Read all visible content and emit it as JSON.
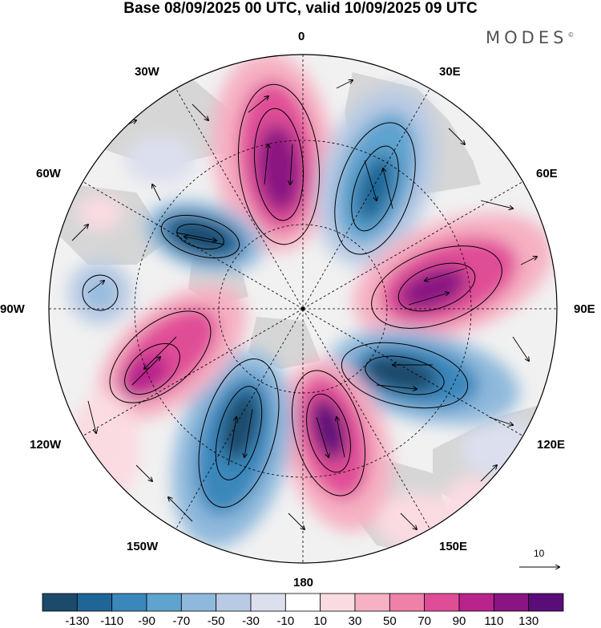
{
  "title": "Base 08/09/2025 00 UTC, valid 10/09/2025 09 UTC",
  "brand": "MODES",
  "brand_mark": "©",
  "longitude_labels": [
    "0",
    "30E",
    "60E",
    "90E",
    "120E",
    "150E",
    "180",
    "150W",
    "120W",
    "90W",
    "60W",
    "30W"
  ],
  "reference_vector": {
    "label": "10",
    "icon": "arrow-right-icon"
  },
  "colorbar": {
    "labels": [
      "-130",
      "-110",
      "-90",
      "-70",
      "-50",
      "-30",
      "-10",
      "10",
      "30",
      "50",
      "70",
      "90",
      "110",
      "130"
    ],
    "colors": [
      "#1b4a6b",
      "#1f6696",
      "#3a87bc",
      "#5fa3cf",
      "#8fb9dc",
      "#b9cbe4",
      "#dcdfee",
      "#ffffff",
      "#fbdbe2",
      "#f6b1c3",
      "#ef80a8",
      "#e04d97",
      "#b8248c",
      "#8a1482",
      "#5a0d78"
    ]
  },
  "colors": {
    "land": "#cfcfcf",
    "grid": "#000000"
  }
}
